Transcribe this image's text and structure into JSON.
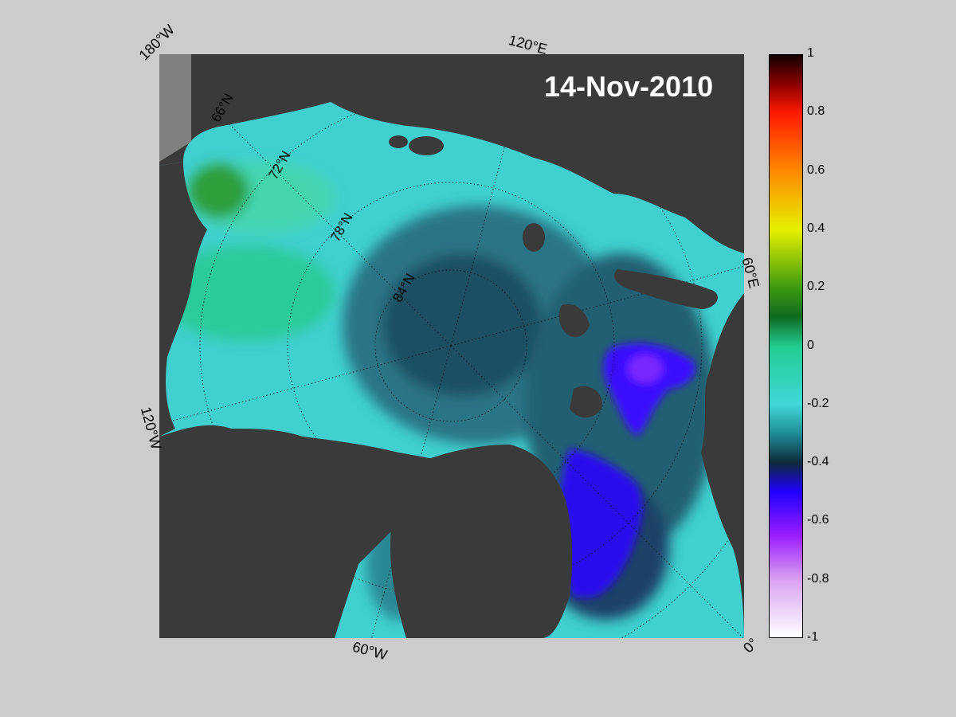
{
  "map": {
    "date": "14-Nov-2010",
    "edge_labels": {
      "top_left": "180°W",
      "top": "120°E",
      "right": "60°E",
      "left": "120°W",
      "bottom": "60°W",
      "bottom_right": "0°"
    },
    "latitude_labels": [
      "66°N",
      "72°N",
      "78°N",
      "84°N"
    ],
    "colors": {
      "land": "#3a3a3a",
      "land_mask": "#808080",
      "background": "#cccccc"
    }
  },
  "colorbar": {
    "range": [
      -1,
      1
    ],
    "tick_labels": [
      "1",
      "0.8",
      "0.6",
      "0.4",
      "0.2",
      "0",
      "-0.2",
      "-0.4",
      "-0.6",
      "-0.8",
      "-1"
    ],
    "gradient_stops": [
      {
        "value": 1.0,
        "color": "#120000"
      },
      {
        "value": 0.9,
        "color": "#8b0000"
      },
      {
        "value": 0.8,
        "color": "#ff1a00"
      },
      {
        "value": 0.6,
        "color": "#ff8a00"
      },
      {
        "value": 0.4,
        "color": "#e6f000"
      },
      {
        "value": 0.2,
        "color": "#3c9a10"
      },
      {
        "value": 0.1,
        "color": "#0f6a20"
      },
      {
        "value": 0.0,
        "color": "#22cc90"
      },
      {
        "value": -0.2,
        "color": "#40d8d8"
      },
      {
        "value": -0.3,
        "color": "#1f8c96"
      },
      {
        "value": -0.4,
        "color": "#0d2a3a"
      },
      {
        "value": -0.5,
        "color": "#2000ff"
      },
      {
        "value": -0.65,
        "color": "#9a1cff"
      },
      {
        "value": -0.8,
        "color": "#d8a0f0"
      },
      {
        "value": -1.0,
        "color": "#ffffff"
      }
    ]
  }
}
